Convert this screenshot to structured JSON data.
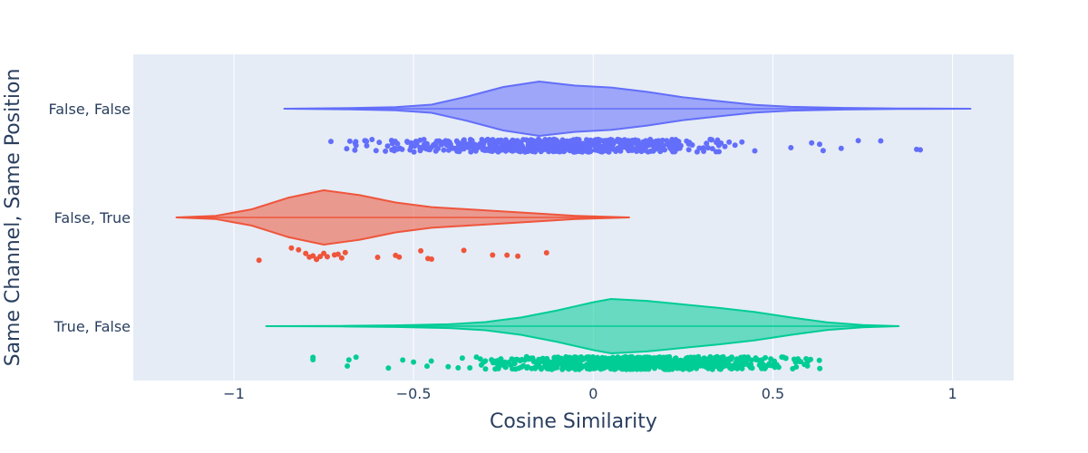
{
  "chart_data": {
    "type": "violin",
    "xlabel": "Cosine Similarity",
    "ylabel": "Same Channel, Same Position",
    "xlim": [
      -1.28,
      1.17
    ],
    "x_ticks": [
      -1,
      -0.5,
      0,
      0.5,
      1
    ],
    "x_tick_labels": [
      "−1",
      "−0.5",
      "0",
      "0.5",
      "1"
    ],
    "grid": true,
    "legend": "none",
    "series": [
      {
        "name": "False, False",
        "color": "#636efa",
        "range": [
          -0.86,
          1.05
        ],
        "median": -0.05,
        "density": [
          [
            -0.86,
            0.0
          ],
          [
            -0.7,
            0.02
          ],
          [
            -0.55,
            0.06
          ],
          [
            -0.45,
            0.15
          ],
          [
            -0.35,
            0.45
          ],
          [
            -0.25,
            0.8
          ],
          [
            -0.15,
            1.0
          ],
          [
            -0.05,
            0.85
          ],
          [
            0.05,
            0.78
          ],
          [
            0.15,
            0.62
          ],
          [
            0.25,
            0.42
          ],
          [
            0.35,
            0.28
          ],
          [
            0.45,
            0.14
          ],
          [
            0.55,
            0.07
          ],
          [
            0.7,
            0.03
          ],
          [
            0.85,
            0.01
          ],
          [
            1.05,
            0.0
          ]
        ],
        "points": {
          "count": 650,
          "center": -0.1,
          "spread": 0.22,
          "outliers": [
            -0.73,
            -0.66,
            0.55,
            0.63,
            0.64,
            0.69,
            0.8,
            0.9,
            0.91
          ]
        }
      },
      {
        "name": "False, True",
        "color": "#ef553b",
        "range": [
          -1.16,
          0.1
        ],
        "median": -0.76,
        "density": [
          [
            -1.16,
            0.0
          ],
          [
            -1.05,
            0.06
          ],
          [
            -0.95,
            0.3
          ],
          [
            -0.85,
            0.72
          ],
          [
            -0.75,
            1.0
          ],
          [
            -0.65,
            0.82
          ],
          [
            -0.55,
            0.55
          ],
          [
            -0.45,
            0.38
          ],
          [
            -0.35,
            0.3
          ],
          [
            -0.25,
            0.22
          ],
          [
            -0.15,
            0.14
          ],
          [
            -0.05,
            0.06
          ],
          [
            0.1,
            0.0
          ]
        ],
        "points": {
          "values": [
            -0.93,
            -0.84,
            -0.82,
            -0.8,
            -0.79,
            -0.78,
            -0.77,
            -0.77,
            -0.76,
            -0.75,
            -0.74,
            -0.72,
            -0.71,
            -0.7,
            -0.69,
            -0.6,
            -0.55,
            -0.54,
            -0.48,
            -0.46,
            -0.45,
            -0.36,
            -0.28,
            -0.24,
            -0.21,
            -0.13
          ]
        }
      },
      {
        "name": "True, False",
        "color": "#00cc96",
        "range": [
          -0.91,
          0.85
        ],
        "median": 0.05,
        "density": [
          [
            -0.91,
            0.0
          ],
          [
            -0.7,
            0.01
          ],
          [
            -0.55,
            0.03
          ],
          [
            -0.4,
            0.07
          ],
          [
            -0.3,
            0.15
          ],
          [
            -0.2,
            0.32
          ],
          [
            -0.1,
            0.58
          ],
          [
            0.0,
            0.88
          ],
          [
            0.05,
            1.0
          ],
          [
            0.15,
            0.93
          ],
          [
            0.25,
            0.8
          ],
          [
            0.35,
            0.67
          ],
          [
            0.45,
            0.52
          ],
          [
            0.55,
            0.32
          ],
          [
            0.65,
            0.14
          ],
          [
            0.75,
            0.04
          ],
          [
            0.85,
            0.0
          ]
        ],
        "points": {
          "count": 700,
          "center": 0.12,
          "spread": 0.2,
          "outliers": [
            -0.78,
            -0.78,
            -0.68,
            -0.66,
            -0.57,
            -0.53,
            -0.5
          ]
        }
      }
    ]
  }
}
